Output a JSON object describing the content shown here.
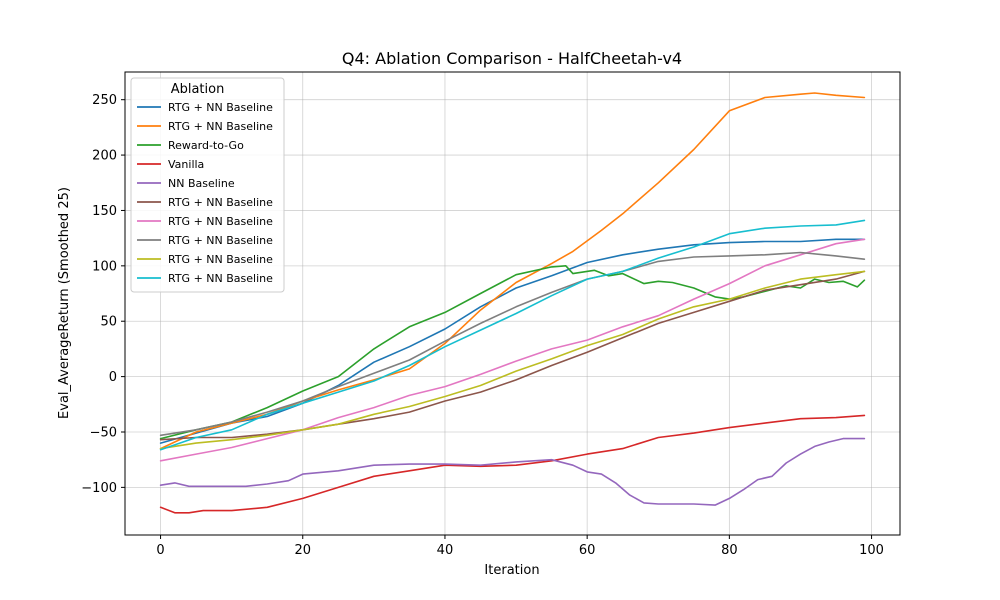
{
  "chart_data": {
    "type": "line",
    "title": "Q4: Ablation Comparison - HalfCheetah-v4",
    "xlabel": "Iteration",
    "ylabel": "Eval_AverageReturn (Smoothed 25)",
    "xlim": [
      -5,
      104
    ],
    "ylim": [
      -143,
      275
    ],
    "x_ticks": [
      0,
      20,
      40,
      60,
      80,
      100
    ],
    "y_ticks": [
      -100,
      -50,
      0,
      50,
      100,
      150,
      200,
      250
    ],
    "grid": true,
    "legend": {
      "title": "Ablation",
      "placement": "top-left"
    },
    "series": [
      {
        "name": "RTG + NN Baseline",
        "color": "#1f77b4",
        "points": [
          [
            0,
            -60
          ],
          [
            5,
            -51
          ],
          [
            10,
            -42
          ],
          [
            15,
            -36
          ],
          [
            20,
            -24
          ],
          [
            25,
            -8
          ],
          [
            30,
            13
          ],
          [
            35,
            27
          ],
          [
            40,
            43
          ],
          [
            45,
            63
          ],
          [
            50,
            80
          ],
          [
            55,
            91
          ],
          [
            60,
            103
          ],
          [
            65,
            110
          ],
          [
            70,
            115
          ],
          [
            75,
            119
          ],
          [
            80,
            121
          ],
          [
            85,
            122
          ],
          [
            90,
            122
          ],
          [
            95,
            124
          ],
          [
            99,
            124
          ]
        ]
      },
      {
        "name": "RTG + NN Baseline",
        "color": "#ff7f0e",
        "points": [
          [
            0,
            -65
          ],
          [
            5,
            -50
          ],
          [
            10,
            -42
          ],
          [
            15,
            -34
          ],
          [
            20,
            -22
          ],
          [
            25,
            -12
          ],
          [
            30,
            -3
          ],
          [
            35,
            7
          ],
          [
            40,
            30
          ],
          [
            45,
            60
          ],
          [
            50,
            85
          ],
          [
            55,
            102
          ],
          [
            58,
            113
          ],
          [
            62,
            132
          ],
          [
            65,
            147
          ],
          [
            70,
            175
          ],
          [
            75,
            205
          ],
          [
            80,
            240
          ],
          [
            85,
            252
          ],
          [
            90,
            255
          ],
          [
            92,
            256
          ],
          [
            95,
            254
          ],
          [
            99,
            252
          ]
        ]
      },
      {
        "name": "Reward-to-Go",
        "color": "#2ca02c",
        "points": [
          [
            0,
            -56
          ],
          [
            5,
            -48
          ],
          [
            10,
            -41
          ],
          [
            15,
            -28
          ],
          [
            20,
            -13
          ],
          [
            25,
            0
          ],
          [
            30,
            25
          ],
          [
            35,
            45
          ],
          [
            40,
            58
          ],
          [
            45,
            75
          ],
          [
            50,
            92
          ],
          [
            55,
            99
          ],
          [
            57,
            100
          ],
          [
            58,
            93
          ],
          [
            61,
            96
          ],
          [
            63,
            91
          ],
          [
            65,
            93
          ],
          [
            68,
            84
          ],
          [
            70,
            86
          ],
          [
            72,
            85
          ],
          [
            75,
            80
          ],
          [
            78,
            72
          ],
          [
            80,
            70
          ],
          [
            82,
            72
          ],
          [
            85,
            77
          ],
          [
            88,
            82
          ],
          [
            90,
            80
          ],
          [
            92,
            88
          ],
          [
            94,
            85
          ],
          [
            96,
            86
          ],
          [
            98,
            81
          ],
          [
            99,
            87
          ]
        ]
      },
      {
        "name": "Vanilla",
        "color": "#d62728",
        "points": [
          [
            0,
            -118
          ],
          [
            2,
            -123
          ],
          [
            4,
            -123
          ],
          [
            6,
            -121
          ],
          [
            10,
            -121
          ],
          [
            15,
            -118
          ],
          [
            20,
            -110
          ],
          [
            25,
            -100
          ],
          [
            30,
            -90
          ],
          [
            35,
            -85
          ],
          [
            40,
            -80
          ],
          [
            45,
            -81
          ],
          [
            50,
            -80
          ],
          [
            55,
            -76
          ],
          [
            60,
            -70
          ],
          [
            65,
            -65
          ],
          [
            70,
            -55
          ],
          [
            75,
            -51
          ],
          [
            80,
            -46
          ],
          [
            85,
            -42
          ],
          [
            90,
            -38
          ],
          [
            95,
            -37
          ],
          [
            99,
            -35
          ]
        ]
      },
      {
        "name": "NN Baseline",
        "color": "#9467bd",
        "points": [
          [
            0,
            -98
          ],
          [
            2,
            -96
          ],
          [
            4,
            -99
          ],
          [
            8,
            -99
          ],
          [
            12,
            -99
          ],
          [
            15,
            -97
          ],
          [
            18,
            -94
          ],
          [
            20,
            -88
          ],
          [
            25,
            -85
          ],
          [
            30,
            -80
          ],
          [
            35,
            -79
          ],
          [
            40,
            -79
          ],
          [
            45,
            -80
          ],
          [
            50,
            -77
          ],
          [
            55,
            -75
          ],
          [
            58,
            -80
          ],
          [
            60,
            -86
          ],
          [
            62,
            -88
          ],
          [
            64,
            -96
          ],
          [
            66,
            -107
          ],
          [
            68,
            -114
          ],
          [
            70,
            -115
          ],
          [
            75,
            -115
          ],
          [
            78,
            -116
          ],
          [
            80,
            -110
          ],
          [
            82,
            -102
          ],
          [
            84,
            -93
          ],
          [
            86,
            -90
          ],
          [
            88,
            -78
          ],
          [
            90,
            -70
          ],
          [
            92,
            -63
          ],
          [
            94,
            -59
          ],
          [
            96,
            -56
          ],
          [
            99,
            -56
          ]
        ]
      },
      {
        "name": "RTG + NN Baseline",
        "color": "#8c564b",
        "points": [
          [
            0,
            -57
          ],
          [
            5,
            -55
          ],
          [
            10,
            -55
          ],
          [
            15,
            -52
          ],
          [
            20,
            -48
          ],
          [
            25,
            -43
          ],
          [
            30,
            -38
          ],
          [
            35,
            -32
          ],
          [
            40,
            -22
          ],
          [
            45,
            -14
          ],
          [
            50,
            -3
          ],
          [
            55,
            10
          ],
          [
            60,
            22
          ],
          [
            65,
            35
          ],
          [
            70,
            48
          ],
          [
            75,
            58
          ],
          [
            80,
            68
          ],
          [
            85,
            78
          ],
          [
            90,
            83
          ],
          [
            95,
            88
          ],
          [
            99,
            95
          ]
        ]
      },
      {
        "name": "RTG + NN Baseline",
        "color": "#e377c2",
        "points": [
          [
            0,
            -76
          ],
          [
            5,
            -70
          ],
          [
            10,
            -64
          ],
          [
            15,
            -56
          ],
          [
            20,
            -48
          ],
          [
            25,
            -37
          ],
          [
            30,
            -28
          ],
          [
            35,
            -17
          ],
          [
            40,
            -9
          ],
          [
            45,
            2
          ],
          [
            50,
            14
          ],
          [
            55,
            25
          ],
          [
            60,
            33
          ],
          [
            65,
            45
          ],
          [
            70,
            55
          ],
          [
            75,
            70
          ],
          [
            80,
            84
          ],
          [
            85,
            100
          ],
          [
            90,
            110
          ],
          [
            95,
            120
          ],
          [
            99,
            124
          ]
        ]
      },
      {
        "name": "RTG + NN Baseline",
        "color": "#7f7f7f",
        "points": [
          [
            0,
            -53
          ],
          [
            5,
            -48
          ],
          [
            10,
            -41
          ],
          [
            15,
            -32
          ],
          [
            20,
            -22
          ],
          [
            25,
            -9
          ],
          [
            30,
            3
          ],
          [
            35,
            15
          ],
          [
            40,
            32
          ],
          [
            45,
            48
          ],
          [
            50,
            63
          ],
          [
            55,
            76
          ],
          [
            60,
            88
          ],
          [
            65,
            95
          ],
          [
            70,
            104
          ],
          [
            75,
            108
          ],
          [
            80,
            109
          ],
          [
            85,
            110
          ],
          [
            90,
            112
          ],
          [
            95,
            109
          ],
          [
            99,
            106
          ]
        ]
      },
      {
        "name": "RTG + NN Baseline",
        "color": "#bcbd22",
        "points": [
          [
            0,
            -65
          ],
          [
            5,
            -60
          ],
          [
            10,
            -57
          ],
          [
            15,
            -53
          ],
          [
            20,
            -48
          ],
          [
            25,
            -43
          ],
          [
            30,
            -34
          ],
          [
            35,
            -27
          ],
          [
            40,
            -18
          ],
          [
            45,
            -8
          ],
          [
            50,
            5
          ],
          [
            55,
            16
          ],
          [
            60,
            28
          ],
          [
            65,
            38
          ],
          [
            70,
            52
          ],
          [
            75,
            63
          ],
          [
            80,
            70
          ],
          [
            85,
            80
          ],
          [
            90,
            88
          ],
          [
            95,
            92
          ],
          [
            99,
            95
          ]
        ]
      },
      {
        "name": "RTG + NN Baseline",
        "color": "#17becf",
        "points": [
          [
            0,
            -66
          ],
          [
            5,
            -55
          ],
          [
            10,
            -48
          ],
          [
            15,
            -34
          ],
          [
            20,
            -24
          ],
          [
            25,
            -14
          ],
          [
            30,
            -4
          ],
          [
            35,
            10
          ],
          [
            40,
            27
          ],
          [
            45,
            42
          ],
          [
            50,
            57
          ],
          [
            55,
            73
          ],
          [
            60,
            88
          ],
          [
            65,
            95
          ],
          [
            70,
            107
          ],
          [
            75,
            117
          ],
          [
            80,
            129
          ],
          [
            85,
            134
          ],
          [
            90,
            136
          ],
          [
            95,
            137
          ],
          [
            99,
            141
          ]
        ]
      }
    ]
  }
}
